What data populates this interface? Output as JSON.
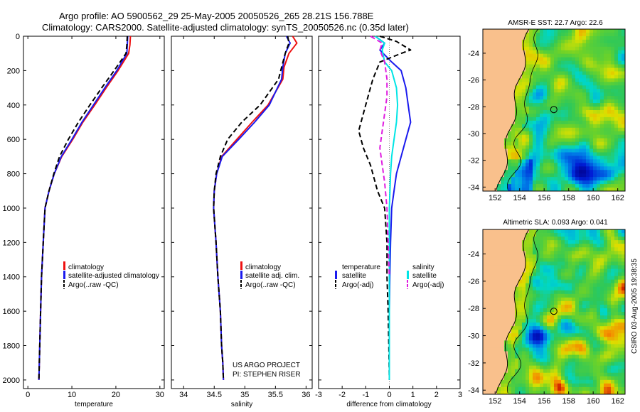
{
  "header": {
    "line1": "Argo profile: AO 5900562_29 25-May-2005 20050526_265 28.21S 156.788E",
    "line2": "Climatology: CARS2000. Satellite-adjusted climatology: synTS_20050526.nc (0.35d later)"
  },
  "chart_data": [
    {
      "type": "line",
      "id": "temperature",
      "xlabel": "temperature",
      "ylabel": "",
      "xlim": [
        -1,
        31
      ],
      "ylim": [
        2050,
        0
      ],
      "xticks": [
        0,
        10,
        20,
        30
      ],
      "yticks": [
        0,
        200,
        400,
        600,
        800,
        1000,
        1200,
        1400,
        1600,
        1800,
        2000
      ],
      "legend": [
        "climatology",
        "satellite-adjusted climatology",
        "Argo(..raw -QC)"
      ],
      "series": [
        {
          "name": "climatology",
          "color": "#ee1111",
          "dash": "",
          "x": [
            23.3,
            23.2,
            22.9,
            20.5,
            17.8,
            15.2,
            12.5,
            10.2,
            7.7,
            6.0,
            4.8,
            3.9,
            3.5,
            3.1,
            2.9,
            2.7,
            2.6,
            2.5
          ],
          "y": [
            0,
            50,
            100,
            200,
            300,
            400,
            500,
            600,
            700,
            800,
            900,
            1000,
            1200,
            1400,
            1600,
            1800,
            1900,
            2000
          ]
        },
        {
          "name": "satellite-adjusted climatology",
          "color": "#1a1aee",
          "dash": "",
          "x": [
            22.7,
            22.6,
            22.5,
            20.2,
            17.5,
            14.9,
            12.3,
            10.0,
            7.6,
            6.0,
            4.8,
            3.9,
            3.5,
            3.1,
            2.9,
            2.7,
            2.6,
            2.5
          ],
          "y": [
            0,
            50,
            100,
            200,
            300,
            400,
            500,
            600,
            700,
            800,
            900,
            1000,
            1200,
            1400,
            1600,
            1800,
            1900,
            2000
          ]
        },
        {
          "name": "Argo(..raw -QC)",
          "color": "#000000",
          "dash": "7,4",
          "x": [
            22.6,
            22.5,
            22.3,
            19.6,
            16.8,
            14.1,
            11.5,
            9.2,
            7.2,
            5.9,
            4.8,
            3.9,
            3.5,
            3.1,
            2.9,
            2.7,
            2.6,
            2.5
          ],
          "y": [
            0,
            50,
            100,
            200,
            300,
            400,
            500,
            600,
            700,
            800,
            900,
            1000,
            1200,
            1400,
            1600,
            1800,
            1900,
            2000
          ]
        }
      ]
    },
    {
      "type": "line",
      "id": "salinity",
      "xlabel": "salinity",
      "xlim": [
        33.8,
        36.1
      ],
      "ylim": [
        2050,
        0
      ],
      "xticks": [
        34,
        34.5,
        35,
        35.5,
        36
      ],
      "xticklabels": [
        "34",
        "34.5",
        "35",
        "35.5",
        "36"
      ],
      "legend": [
        "climatology",
        "satellite adj. clim.",
        "Argo(..raw -QC)"
      ],
      "annotation": [
        "US ARGO PROJECT",
        "PI: STEPHEN RISER"
      ],
      "series": [
        {
          "name": "climatology",
          "color": "#ee1111",
          "dash": "",
          "x": [
            35.78,
            35.85,
            35.72,
            35.64,
            35.62,
            35.38,
            35.12,
            34.87,
            34.62,
            34.54,
            34.5,
            34.49,
            34.53,
            34.56,
            34.6,
            34.62,
            34.64,
            34.65
          ],
          "y": [
            0,
            40,
            100,
            180,
            250,
            400,
            500,
            600,
            700,
            800,
            900,
            1000,
            1200,
            1400,
            1600,
            1800,
            1900,
            2000
          ]
        },
        {
          "name": "satellite adj. clim.",
          "color": "#1a1aee",
          "dash": "",
          "x": [
            35.68,
            35.74,
            35.66,
            35.62,
            35.6,
            35.4,
            35.16,
            34.9,
            34.63,
            34.54,
            34.5,
            34.49,
            34.53,
            34.56,
            34.6,
            34.62,
            34.64,
            34.65
          ],
          "y": [
            0,
            40,
            100,
            180,
            250,
            400,
            500,
            600,
            700,
            800,
            900,
            1000,
            1200,
            1400,
            1600,
            1800,
            1900,
            2000
          ]
        },
        {
          "name": "Argo(..raw -QC)",
          "color": "#000000",
          "dash": "7,4",
          "x": [
            35.7,
            35.72,
            35.66,
            35.6,
            35.55,
            35.25,
            34.95,
            34.72,
            34.6,
            34.53,
            34.5,
            34.49,
            34.53,
            34.56,
            34.6,
            34.62,
            34.64,
            34.65
          ],
          "y": [
            0,
            40,
            100,
            180,
            250,
            400,
            500,
            600,
            700,
            800,
            900,
            1000,
            1200,
            1400,
            1600,
            1800,
            1900,
            2000
          ]
        }
      ]
    },
    {
      "type": "line",
      "id": "difference",
      "xlabel": "difference from climatology",
      "xlim": [
        -3,
        3
      ],
      "ylim": [
        2050,
        0
      ],
      "xticks": [
        -3,
        -2,
        -1,
        0,
        1,
        2,
        3
      ],
      "xticklabels": [
        "-3",
        "-2",
        "-1",
        "0",
        "1",
        "2",
        "3"
      ],
      "legend_left": [
        "temperature",
        "satellite",
        "Argo(-adj)"
      ],
      "legend_right": [
        "salinity",
        "satellite",
        "Argo(-adj)"
      ],
      "series": [
        {
          "name": "temperature satellite",
          "color": "#1a1aee",
          "dash": "",
          "x": [
            -0.6,
            -0.2,
            -0.4,
            0.1,
            0.5,
            0.7,
            0.8,
            0.9,
            0.7,
            0.5,
            0.3,
            0.2,
            0.1,
            0.05,
            0.02,
            0,
            0,
            0
          ],
          "y": [
            0,
            40,
            80,
            150,
            200,
            300,
            400,
            500,
            600,
            700,
            800,
            900,
            1000,
            1200,
            1400,
            1600,
            1800,
            2000
          ]
        },
        {
          "name": "temperature Argo(-adj)",
          "color": "#000000",
          "dash": "7,4",
          "x": [
            -0.4,
            0.3,
            0.9,
            0.5,
            -0.4,
            -0.7,
            -0.9,
            -1.1,
            -1.3,
            -1.1,
            -0.8,
            -0.5,
            -0.2,
            -0.1,
            -0.1,
            -0.05,
            -0.02,
            0
          ],
          "y": [
            0,
            30,
            80,
            100,
            150,
            250,
            350,
            450,
            550,
            650,
            750,
            900,
            1000,
            1200,
            1400,
            1600,
            1800,
            2000
          ]
        },
        {
          "name": "salinity satellite",
          "color": "#00e5e5",
          "dash": "",
          "x": [
            -0.6,
            -0.2,
            -0.3,
            -0.2,
            0.1,
            0.3,
            0.35,
            0.3,
            0.2,
            0.1,
            0.05,
            0,
            0,
            0
          ],
          "y": [
            0,
            40,
            80,
            150,
            200,
            300,
            400,
            500,
            600,
            700,
            800,
            1000,
            1400,
            2000
          ]
        },
        {
          "name": "salinity Argo(-adj)",
          "color": "#e01ce0",
          "dash": "7,4",
          "x": [
            -0.8,
            -0.3,
            -0.4,
            -0.2,
            -0.1,
            -0.1,
            -0.2,
            -0.3,
            -0.4,
            -0.3,
            -0.2,
            -0.1,
            -0.05,
            0
          ],
          "y": [
            0,
            40,
            80,
            150,
            250,
            350,
            450,
            550,
            650,
            750,
            850,
            1000,
            1200,
            1400
          ]
        }
      ]
    },
    {
      "type": "heatmap",
      "id": "sst-map",
      "title": "AMSR-E SST: 22.7 Argo: 22.6",
      "xticks": [
        152,
        154,
        156,
        158,
        160,
        162
      ],
      "yticks": [
        -24,
        -26,
        -28,
        -30,
        -32,
        -34
      ],
      "xlim": [
        151,
        162.6
      ],
      "ylim": [
        -34.3,
        -22.2
      ],
      "float_location": {
        "lon": 156.788,
        "lat": -28.21
      }
    },
    {
      "type": "heatmap",
      "id": "sla-map",
      "title": "Altimetric SLA: 0.093 Argo: 0.041",
      "xticks": [
        152,
        154,
        156,
        158,
        160,
        162
      ],
      "yticks": [
        -24,
        -26,
        -28,
        -30,
        -32,
        -34
      ],
      "xlim": [
        151,
        162.6
      ],
      "ylim": [
        -34.3,
        -22.2
      ],
      "float_location": {
        "lon": 156.788,
        "lat": -28.21
      }
    }
  ],
  "footer": {
    "vertical_label": "CSIRO 03-Aug-2005 19:38:35"
  }
}
